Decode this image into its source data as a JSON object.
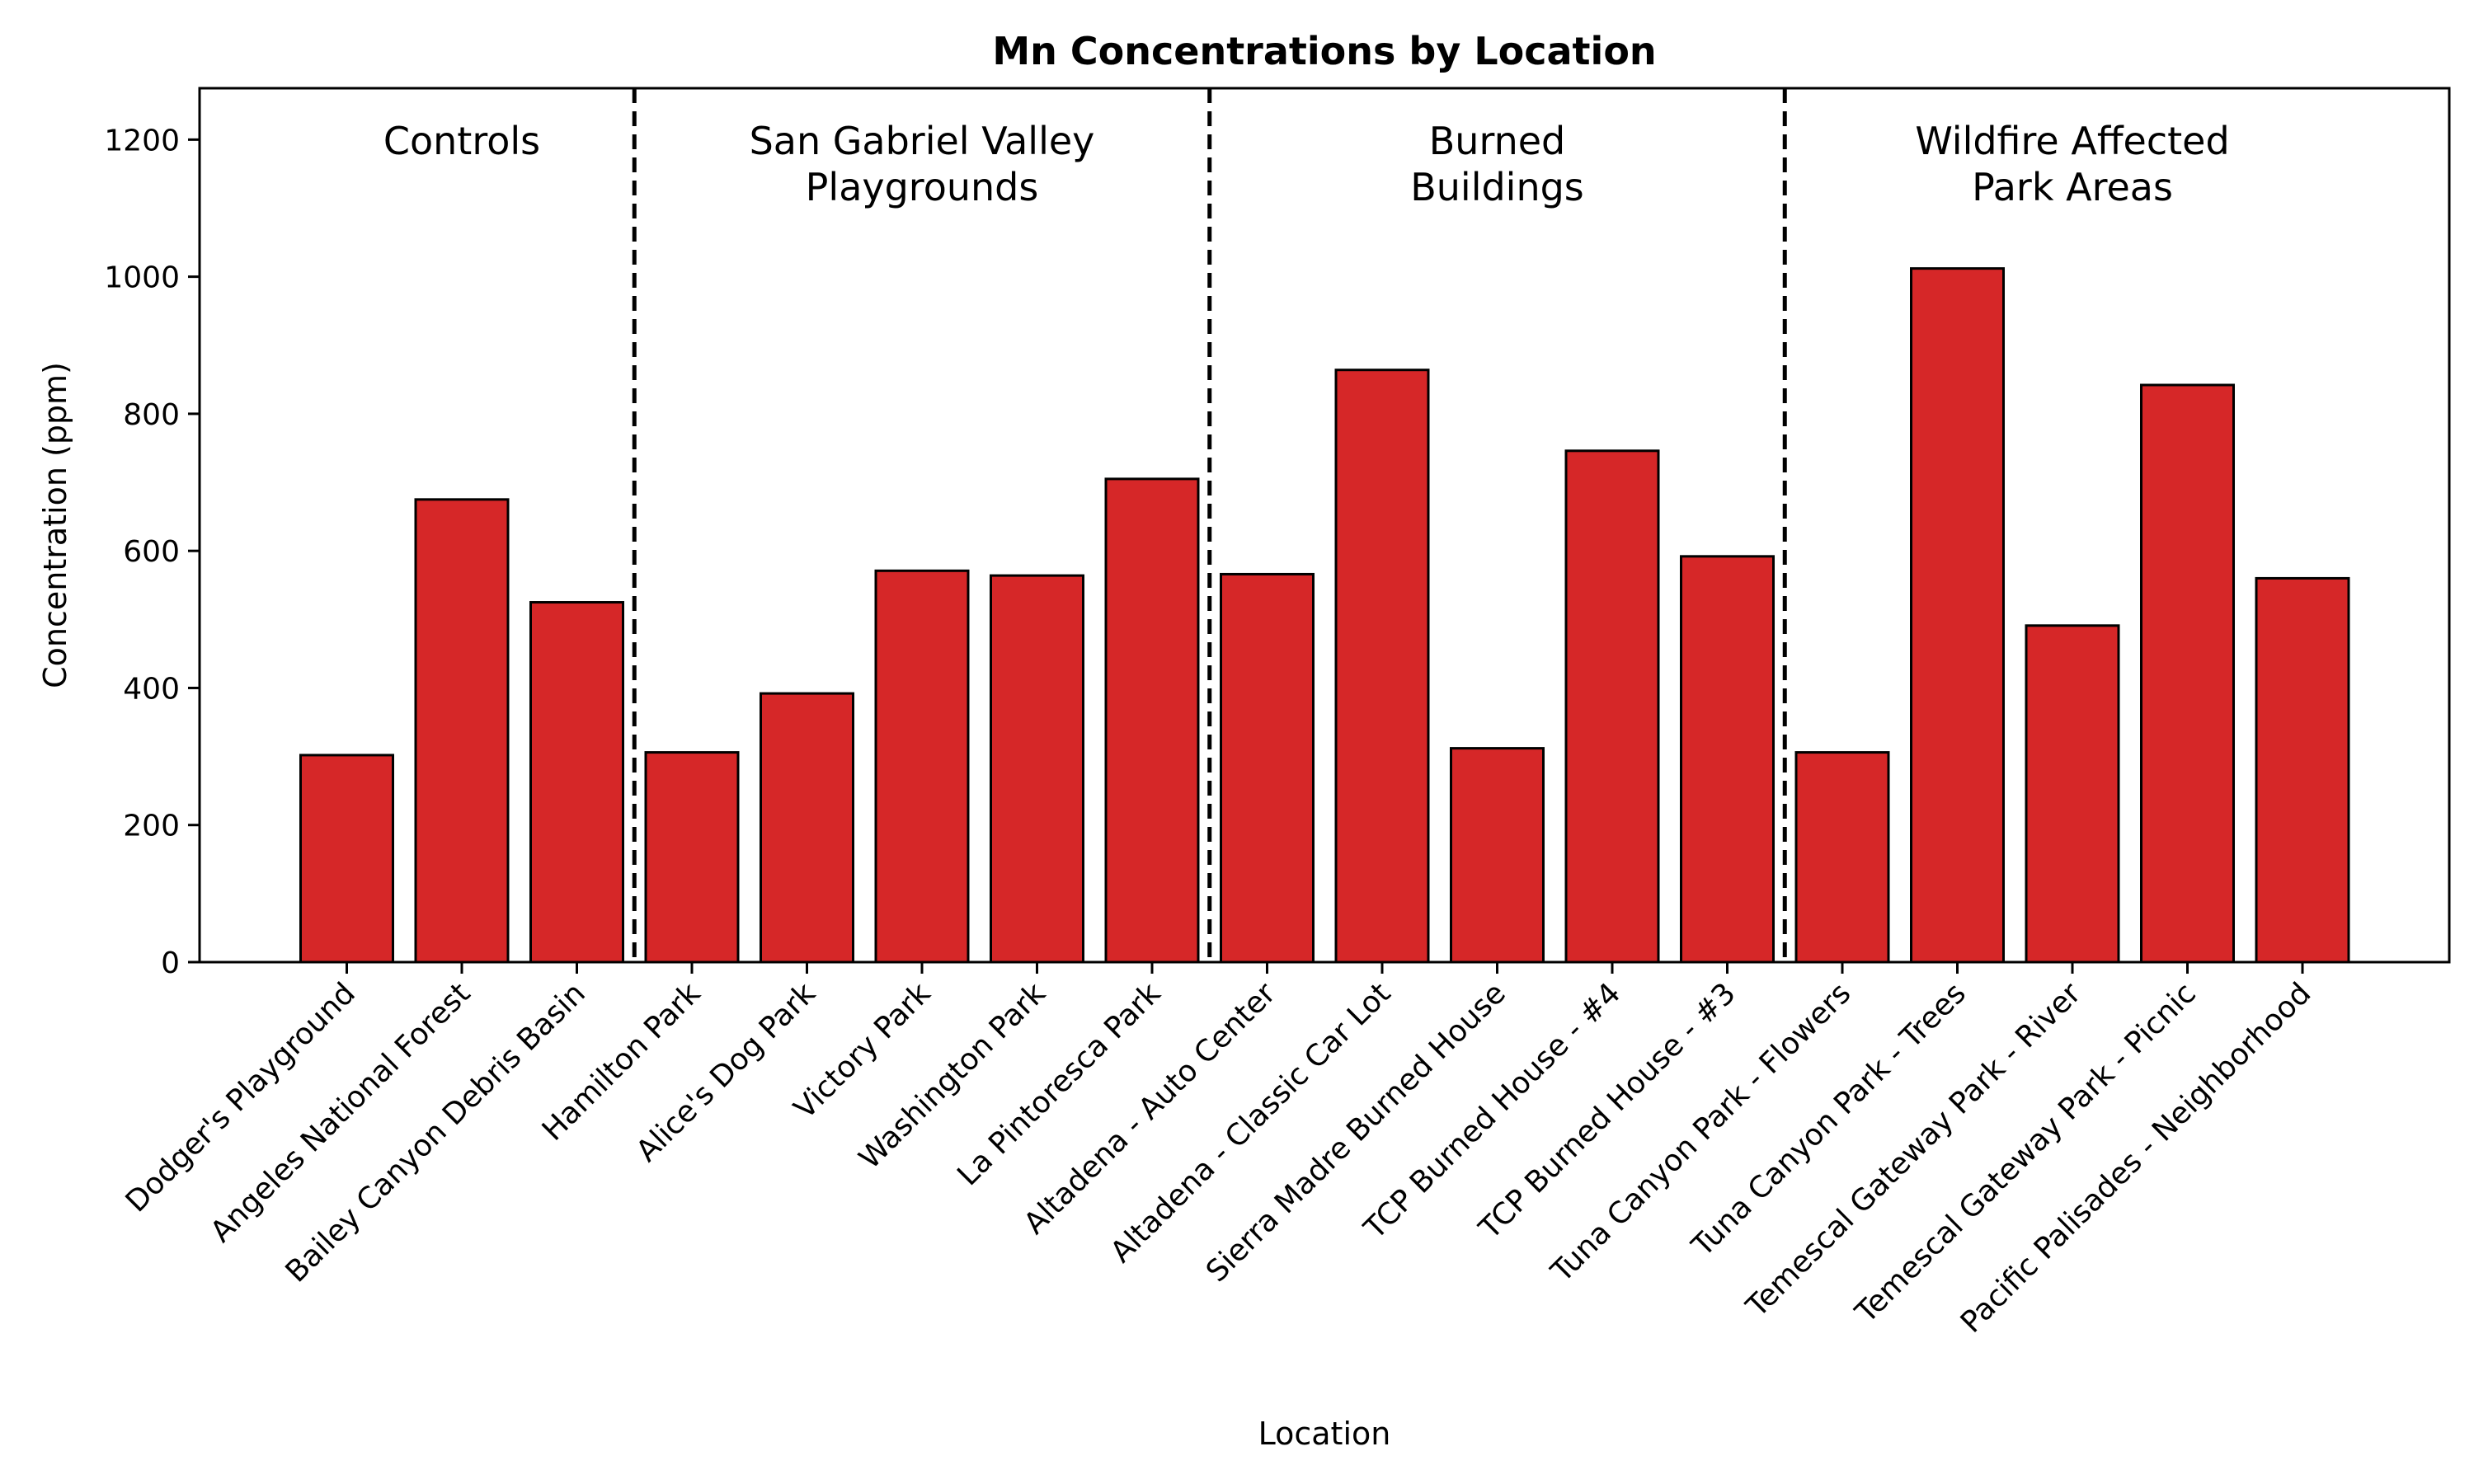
{
  "chart_data": {
    "type": "bar",
    "title": "Mn Concentrations by Location",
    "xlabel": "Location",
    "ylabel": "Concentration (ppm)",
    "ylim": [
      0,
      1275
    ],
    "yticks": [
      0,
      200,
      400,
      600,
      800,
      1000,
      1200
    ],
    "grid": false,
    "bar_color": "#d62728",
    "categories": [
      "Dodger's Playground",
      "Angeles National Forest",
      "Bailey Canyon Debris Basin",
      "Hamilton Park",
      "Alice's Dog Park",
      "Victory Park",
      "Washington Park",
      "La Pintoresca Park",
      "Altadena - Auto Center",
      "Altadena - Classic Car Lot",
      "Sierra Madre Burned House",
      "TCP Burned House - #4",
      "TCP Burned House - #3",
      "Tuna Canyon Park - Flowers",
      "Tuna Canyon Park - Trees",
      "Temescal Gateway Park - River",
      "Temescal Gateway Park - Picnic",
      "Pacific Palisades - Neighborhood"
    ],
    "values": [
      302,
      675,
      525,
      306,
      392,
      571,
      564,
      705,
      566,
      864,
      312,
      746,
      592,
      306,
      1012,
      491,
      842,
      560
    ],
    "groups": [
      {
        "label_lines": [
          "Controls"
        ],
        "start": 0,
        "end": 2
      },
      {
        "label_lines": [
          "San Gabriel Valley",
          "Playgrounds"
        ],
        "start": 3,
        "end": 7
      },
      {
        "label_lines": [
          "Burned",
          "Buildings"
        ],
        "start": 8,
        "end": 12
      },
      {
        "label_lines": [
          "Wildfire Affected",
          "Park Areas"
        ],
        "start": 13,
        "end": 17
      }
    ]
  }
}
